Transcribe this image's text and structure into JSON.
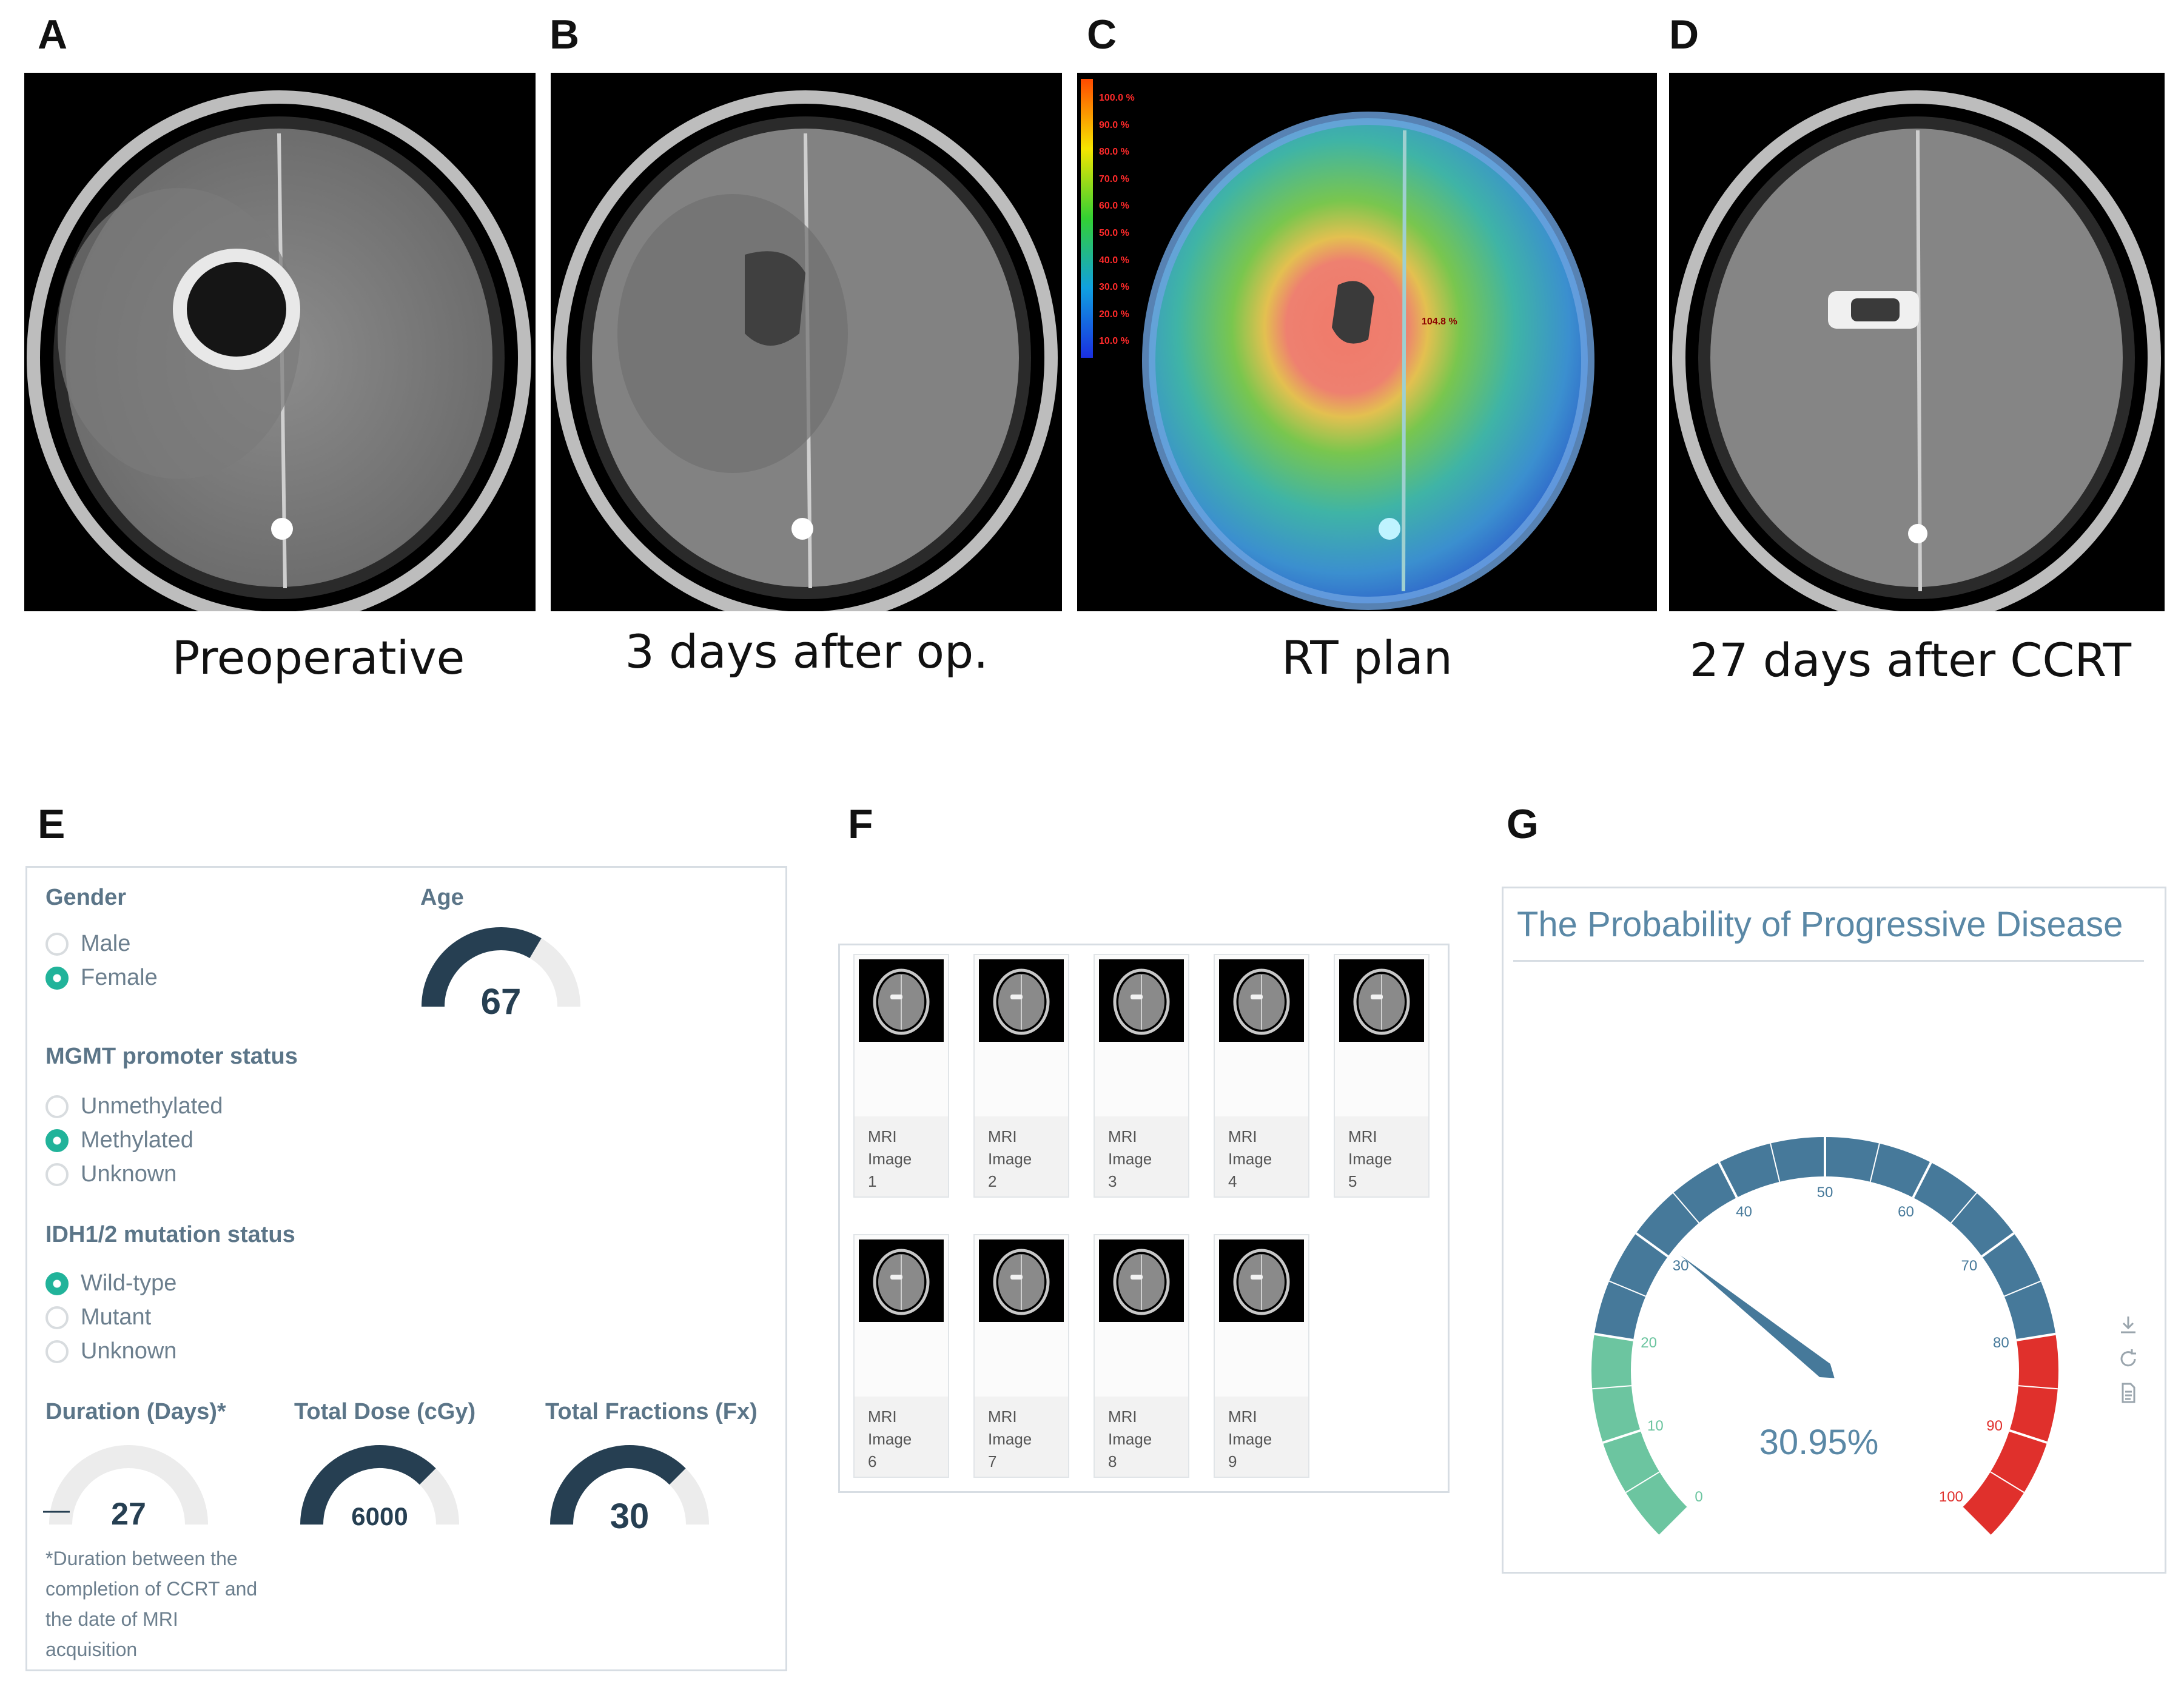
{
  "panels": {
    "a": {
      "letter": "A",
      "caption": "Preoperative"
    },
    "b": {
      "letter": "B",
      "caption": "3 days after op."
    },
    "c": {
      "letter": "C",
      "caption": "RT plan",
      "dose_legend": [
        "100.0 %",
        "90.0 %",
        "80.0 %",
        "70.0 %",
        "60.0 %",
        "50.0 %",
        "40.0 %",
        "30.0 %",
        "20.0 %",
        "10.0 %"
      ],
      "max_dose_label": "104.8 %"
    },
    "d": {
      "letter": "D",
      "caption": "27 days after CCRT"
    },
    "e": {
      "letter": "E"
    },
    "f": {
      "letter": "F"
    },
    "g": {
      "letter": "G"
    }
  },
  "form": {
    "gender": {
      "title": "Gender",
      "options": [
        "Male",
        "Female"
      ],
      "selected": "Female"
    },
    "age": {
      "title": "Age",
      "value": "67",
      "fraction": 0.67
    },
    "mgmt": {
      "title": "MGMT promoter status",
      "options": [
        "Unmethylated",
        "Methylated",
        "Unknown"
      ],
      "selected": "Methylated"
    },
    "idh": {
      "title": "IDH1/2 mutation status",
      "options": [
        "Wild-type",
        "Mutant",
        "Unknown"
      ],
      "selected": "Wild-type"
    },
    "duration": {
      "title": "Duration (Days)*",
      "value": "27",
      "fraction": 0.0,
      "dash": "—",
      "note": "*Duration between the completion of CCRT and the date of MRI acquisition"
    },
    "dose": {
      "title": "Total Dose (cGy)",
      "value": "6000",
      "fraction": 0.75
    },
    "fractions": {
      "title": "Total Fractions (Fx)",
      "value": "30",
      "fraction": 0.75
    }
  },
  "gallery": {
    "items": [
      {
        "line1": "MRI",
        "line2": "Image",
        "line3": "1"
      },
      {
        "line1": "MRI",
        "line2": "Image",
        "line3": "2"
      },
      {
        "line1": "MRI",
        "line2": "Image",
        "line3": "3"
      },
      {
        "line1": "MRI",
        "line2": "Image",
        "line3": "4"
      },
      {
        "line1": "MRI",
        "line2": "Image",
        "line3": "5"
      },
      {
        "line1": "MRI",
        "line2": "Image",
        "line3": "6"
      },
      {
        "line1": "MRI",
        "line2": "Image",
        "line3": "7"
      },
      {
        "line1": "MRI",
        "line2": "Image",
        "line3": "8"
      },
      {
        "line1": "MRI",
        "line2": "Image",
        "line3": "9"
      }
    ]
  },
  "gauge": {
    "title": "The Probability of Progressive Disease",
    "value": 30.95,
    "value_label": "30.95%",
    "min": 0,
    "max": 100,
    "ticks": [
      "0",
      "10",
      "20",
      "30",
      "40",
      "50",
      "60",
      "70",
      "80",
      "90",
      "100"
    ],
    "bands": [
      {
        "from": 0,
        "to": 20,
        "color": "#6cc5a0"
      },
      {
        "from": 20,
        "to": 80,
        "color": "#46799a"
      },
      {
        "from": 80,
        "to": 100,
        "color": "#e0302c"
      }
    ],
    "toolbar_icons": [
      "download-icon",
      "refresh-icon",
      "document-icon"
    ]
  },
  "colors": {
    "accent_teal": "#21b39a",
    "gauge_dark": "#263f52",
    "gauge_track": "#ececec",
    "title_blue": "#5a88a6"
  }
}
